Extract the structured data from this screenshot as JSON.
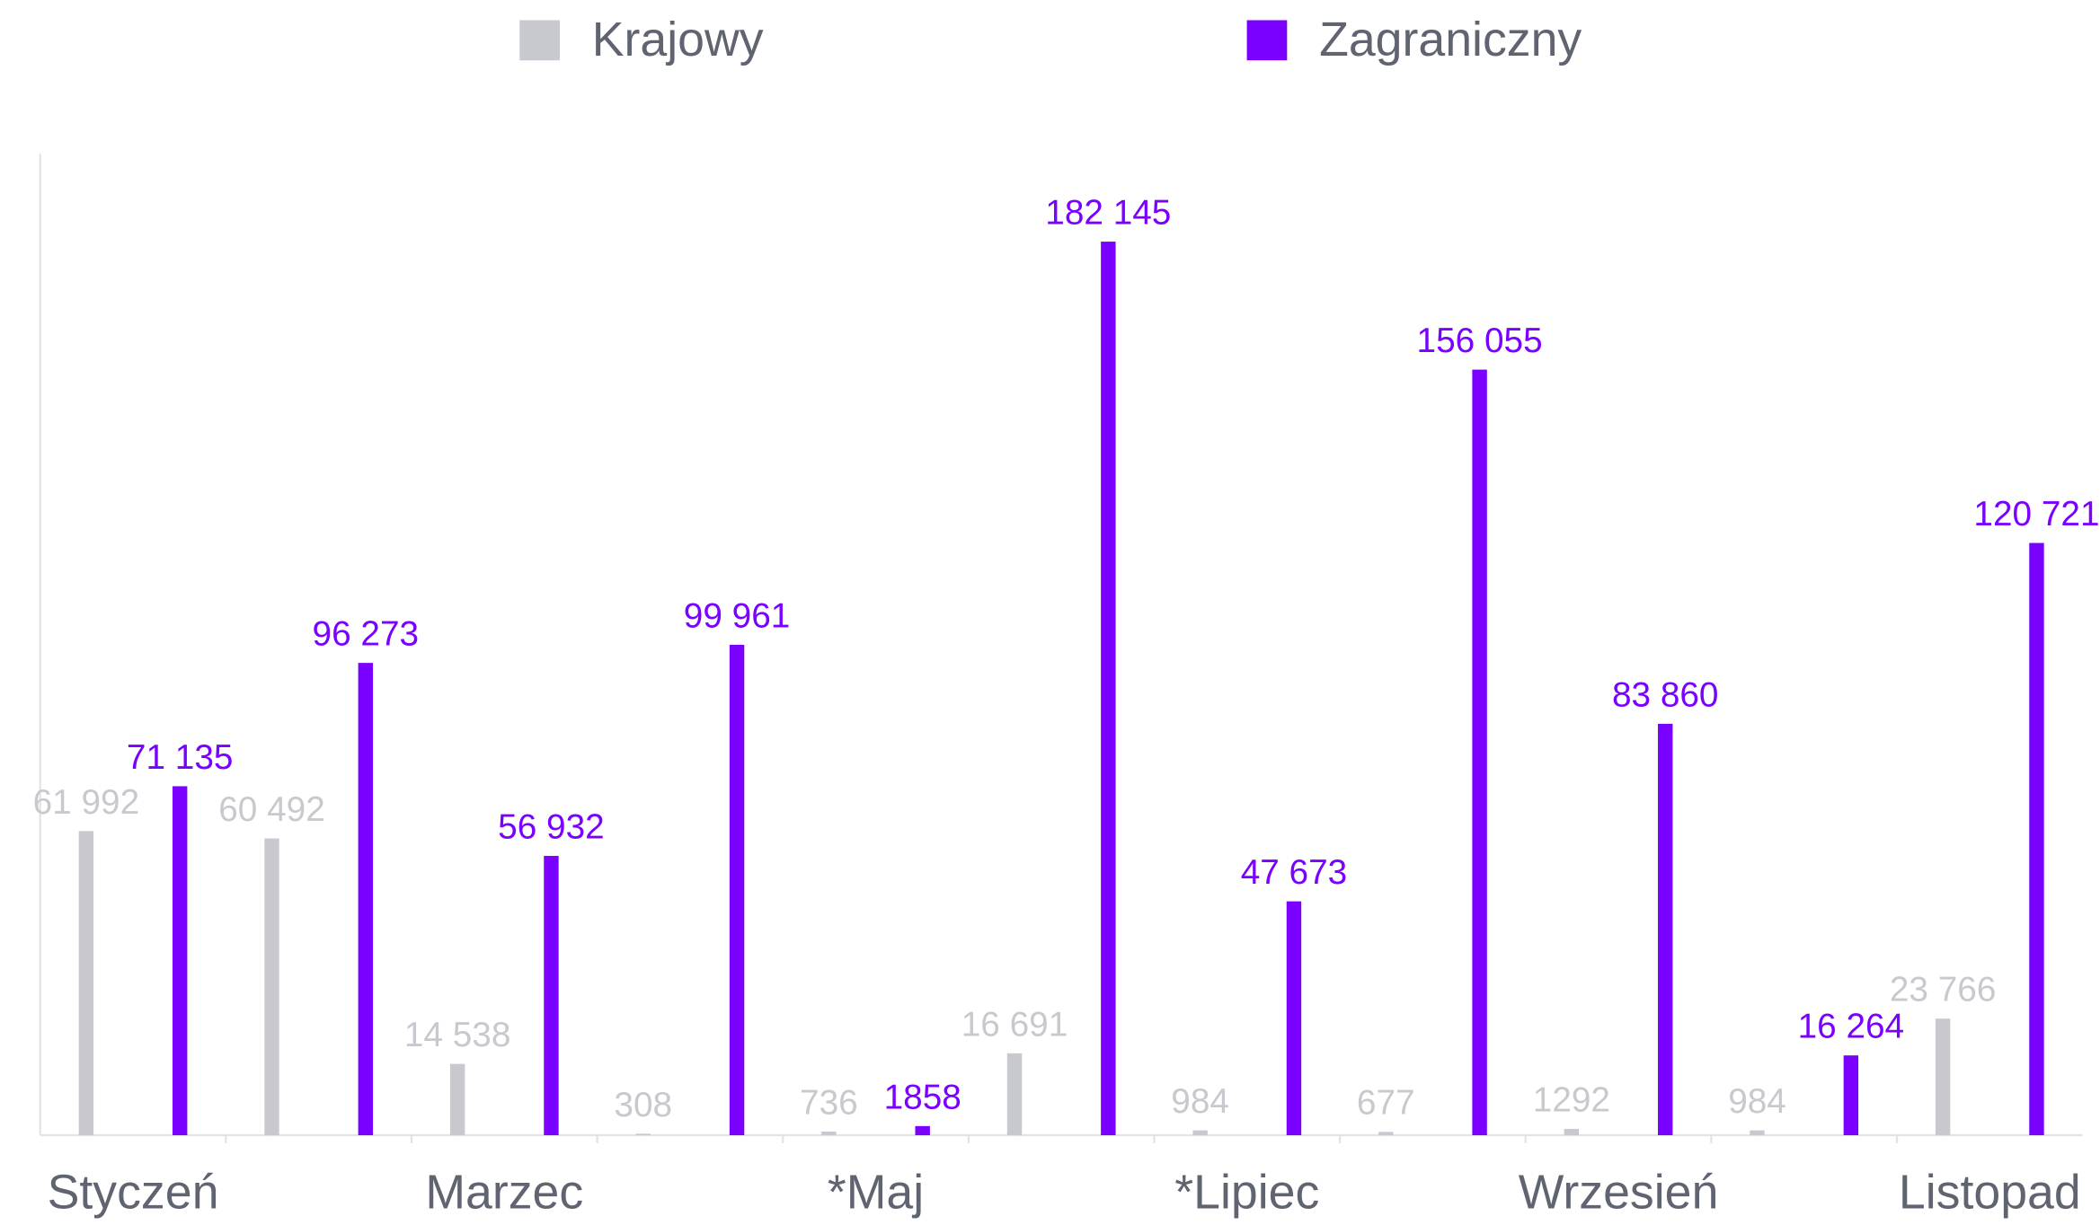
{
  "chart_data": {
    "type": "bar",
    "categories": [
      "Styczeń",
      null,
      "Marzec",
      null,
      "*Maj",
      null,
      "*Lipiec",
      null,
      "Wrzesień",
      null,
      "Listopad"
    ],
    "series": [
      {
        "name": "Krajowy",
        "color": "#c8c9ce",
        "values": [
          61992,
          60492,
          14538,
          308,
          736,
          16691,
          984,
          677,
          1292,
          984,
          23766
        ],
        "value_labels": [
          "61 992",
          "60 492",
          "14 538",
          "308",
          "736",
          "16 691",
          "984",
          "677",
          "1292",
          "984",
          "23 766"
        ]
      },
      {
        "name": "Zagraniczny",
        "color": "#7a00ff",
        "values": [
          71135,
          96273,
          56932,
          99961,
          1858,
          182145,
          47673,
          156055,
          83860,
          16264,
          120721
        ],
        "value_labels": [
          "71 135",
          "96 273",
          "56 932",
          "99 961",
          "1858",
          "182 145",
          "47 673",
          "156 055",
          "83 860",
          "16 264",
          "120 721"
        ]
      }
    ],
    "ylim": [
      0,
      200000
    ],
    "legend": "top"
  }
}
